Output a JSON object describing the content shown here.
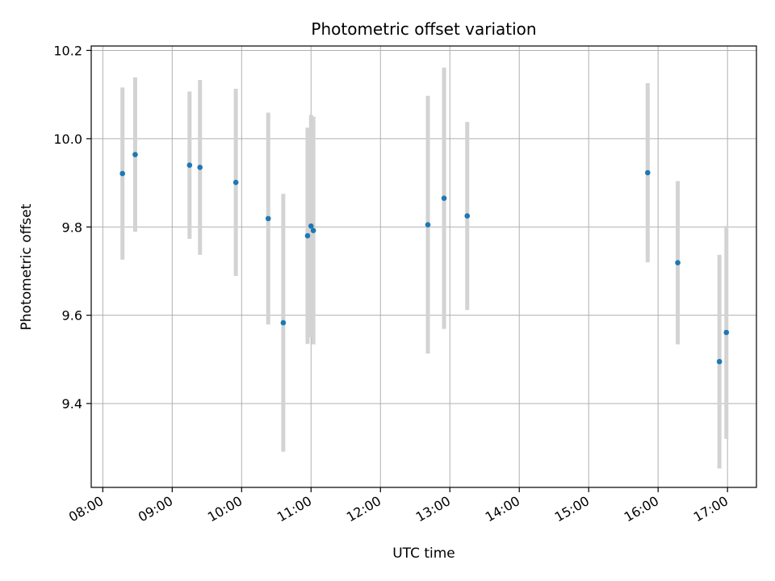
{
  "chart_data": {
    "type": "scatter",
    "title": "Photometric offset variation",
    "xlabel": "UTC time",
    "ylabel": "Photometric offset",
    "xlim": [
      "07:50",
      "17:25"
    ],
    "ylim": [
      9.21,
      10.21
    ],
    "x_ticks": [
      "08:00",
      "09:00",
      "10:00",
      "11:00",
      "12:00",
      "13:00",
      "14:00",
      "15:00",
      "16:00",
      "17:00"
    ],
    "y_ticks": [
      9.4,
      9.6,
      9.8,
      10.0,
      10.2
    ],
    "y_tick_labels": [
      "9.4",
      "9.6",
      "9.8",
      "10.0",
      "10.2"
    ],
    "grid": true,
    "marker_color": "#1f77b4",
    "errorbar_color": "#d3d3d3",
    "points": [
      {
        "x": "08:17",
        "y": 9.921,
        "err": 0.195
      },
      {
        "x": "08:28",
        "y": 9.964,
        "err": 0.175
      },
      {
        "x": "09:15",
        "y": 9.94,
        "err": 0.167
      },
      {
        "x": "09:24",
        "y": 9.935,
        "err": 0.198
      },
      {
        "x": "09:55",
        "y": 9.901,
        "err": 0.212
      },
      {
        "x": "10:23",
        "y": 9.819,
        "err": 0.24
      },
      {
        "x": "10:36",
        "y": 9.583,
        "err": 0.292
      },
      {
        "x": "10:57",
        "y": 9.78,
        "err": 0.245
      },
      {
        "x": "11:00",
        "y": 9.802,
        "err": 0.252
      },
      {
        "x": "11:02",
        "y": 9.792,
        "err": 0.258
      },
      {
        "x": "12:41",
        "y": 9.805,
        "err": 0.292
      },
      {
        "x": "12:55",
        "y": 9.865,
        "err": 0.296
      },
      {
        "x": "13:15",
        "y": 9.825,
        "err": 0.213
      },
      {
        "x": "15:51",
        "y": 9.923,
        "err": 0.203
      },
      {
        "x": "16:17",
        "y": 9.719,
        "err": 0.185
      },
      {
        "x": "16:53",
        "y": 9.495,
        "err": 0.242
      },
      {
        "x": "16:59",
        "y": 9.561,
        "err": 0.241
      }
    ]
  }
}
